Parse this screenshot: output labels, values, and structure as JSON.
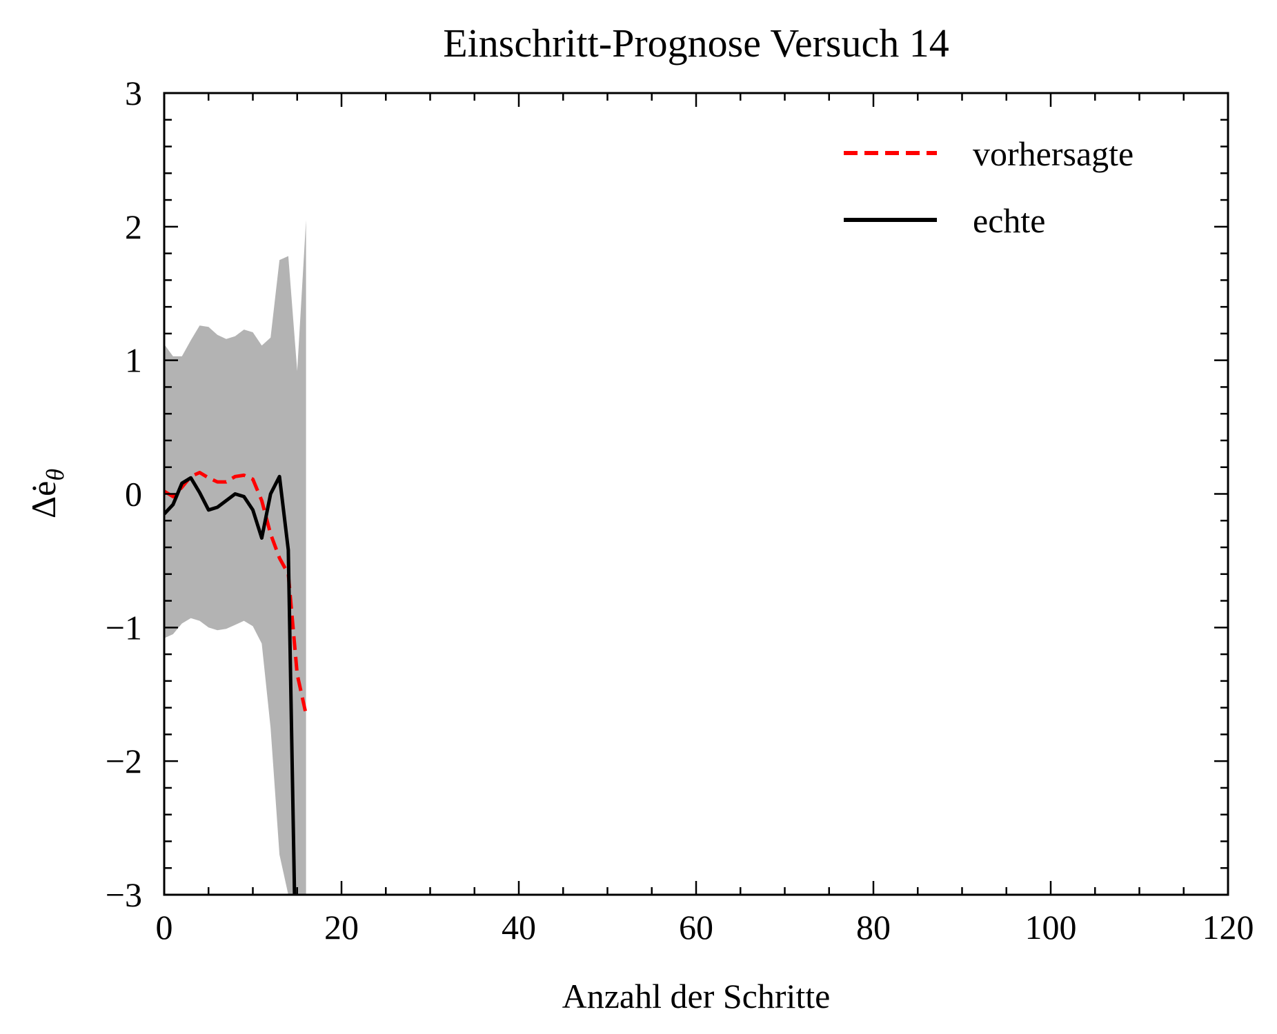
{
  "chart_data": {
    "type": "line",
    "title": "Einschritt-Prognose Versuch 14",
    "xlabel": "Anzahl der Schritte",
    "ylabel": "Δė",
    "ylabel_subscript": "θ",
    "xlim": [
      0,
      120
    ],
    "ylim": [
      -3,
      3
    ],
    "xticks": [
      0,
      20,
      40,
      60,
      80,
      100,
      120
    ],
    "xtick_labels": [
      "0",
      "20",
      "40",
      "60",
      "80",
      "100",
      "120"
    ],
    "yticks": [
      -3,
      -2,
      -1,
      0,
      1,
      2,
      3
    ],
    "ytick_labels": [
      "−3",
      "−2",
      "−1",
      "0",
      "1",
      "2",
      "3"
    ],
    "legend_position": "top-right",
    "band": {
      "name": "uncertainty",
      "color": "#b3b3b3",
      "x": [
        0,
        1,
        2,
        3,
        4,
        5,
        6,
        7,
        8,
        9,
        10,
        11,
        12,
        13,
        14,
        15,
        16
      ],
      "upper": [
        1.12,
        1.03,
        1.03,
        1.15,
        1.26,
        1.25,
        1.19,
        1.16,
        1.18,
        1.23,
        1.21,
        1.11,
        1.17,
        1.75,
        1.78,
        0.92,
        2.05
      ],
      "lower": [
        -1.08,
        -1.05,
        -0.97,
        -0.93,
        -0.95,
        -1.0,
        -1.02,
        -1.01,
        -0.98,
        -0.95,
        -0.99,
        -1.12,
        -1.75,
        -2.7,
        -3.0,
        -3.0,
        -3.0
      ]
    },
    "series": [
      {
        "name": "vorhersagte",
        "color": "#ff0000",
        "style": "dashed",
        "x": [
          0,
          1,
          2,
          3,
          4,
          5,
          6,
          7,
          8,
          9,
          10,
          11,
          12,
          13,
          14,
          15,
          16
        ],
        "values": [
          0.02,
          -0.02,
          0.05,
          0.13,
          0.16,
          0.12,
          0.09,
          0.09,
          0.13,
          0.14,
          0.11,
          -0.05,
          -0.3,
          -0.48,
          -0.6,
          -1.35,
          -1.65
        ]
      },
      {
        "name": "echte",
        "color": "#000000",
        "style": "solid",
        "x": [
          0,
          1,
          2,
          3,
          4,
          5,
          6,
          7,
          8,
          9,
          10,
          11,
          12,
          13,
          14,
          14.7
        ],
        "values": [
          -0.15,
          -0.08,
          0.08,
          0.12,
          0.01,
          -0.12,
          -0.1,
          -0.05,
          0.0,
          -0.02,
          -0.12,
          -0.33,
          0.0,
          0.13,
          -0.42,
          -3.0
        ]
      }
    ]
  }
}
